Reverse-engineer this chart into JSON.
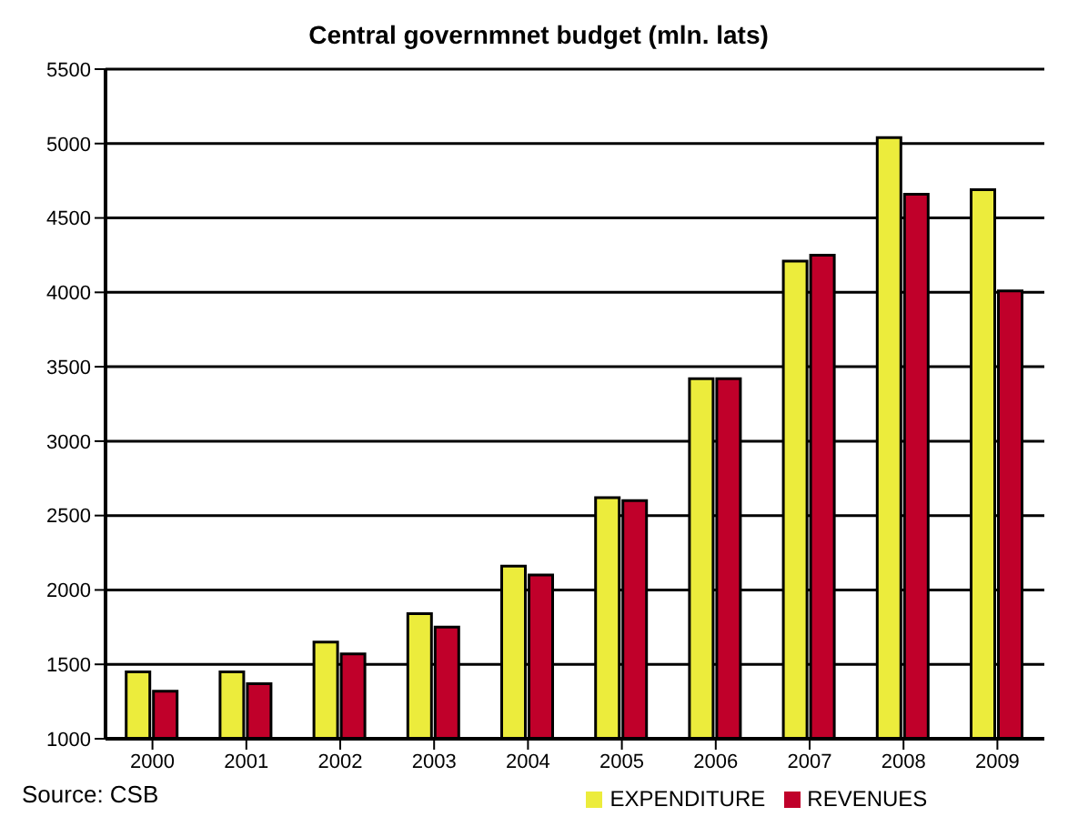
{
  "chart_data": {
    "type": "bar",
    "title": "Central governmnet budget (mln. lats)",
    "categories": [
      "2000",
      "2001",
      "2002",
      "2003",
      "2004",
      "2005",
      "2006",
      "2007",
      "2008",
      "2009"
    ],
    "series": [
      {
        "name": "EXPENDITURE",
        "color": "#ecec3c",
        "values": [
          1450,
          1450,
          1650,
          1840,
          2160,
          2620,
          3420,
          4210,
          5040,
          4690
        ]
      },
      {
        "name": "REVENUES",
        "color": "#c0002a",
        "values": [
          1320,
          1370,
          1570,
          1750,
          2100,
          2600,
          3420,
          4250,
          4660,
          4010
        ]
      }
    ],
    "ylim": [
      1000,
      5500
    ],
    "yticks": [
      1000,
      1500,
      2000,
      2500,
      3000,
      3500,
      4000,
      4500,
      5000,
      5500
    ],
    "grid": "y",
    "legend": "bottom",
    "annotations": [
      "Source: CSB"
    ]
  }
}
